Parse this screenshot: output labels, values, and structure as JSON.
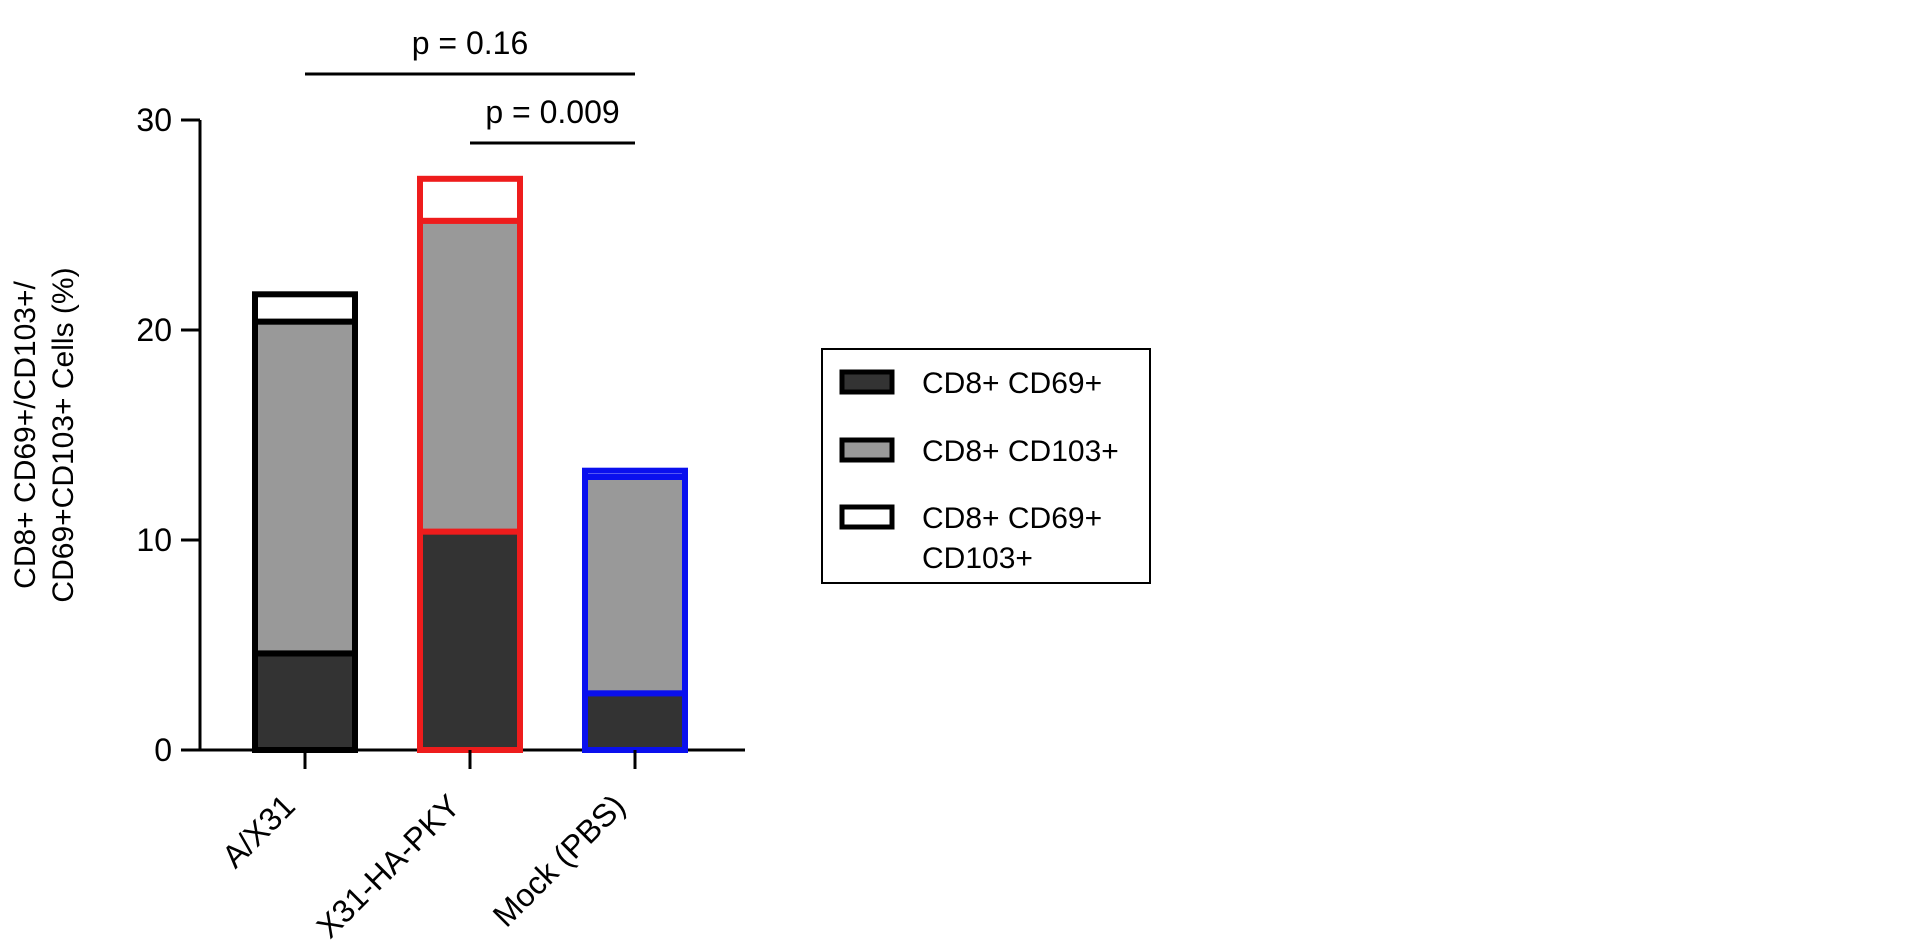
{
  "chart_data": {
    "type": "bar",
    "stacked": true,
    "categories": [
      "A/X31",
      "X31-HA-PKY",
      "Mock (PBS)"
    ],
    "category_outline_colors": [
      "#000000",
      "#ee1c1c",
      "#0a10ee"
    ],
    "series": [
      {
        "name": "CD8+ CD69+",
        "values": [
          4.6,
          10.4,
          2.7
        ],
        "fill": "#333333"
      },
      {
        "name": "CD8+ CD103+",
        "values": [
          15.8,
          14.8,
          10.3
        ],
        "fill": "#999999"
      },
      {
        "name": "CD8+ CD69+ CD103+",
        "legend_lines": [
          "CD8+ CD69+",
          "CD103+"
        ],
        "values": [
          1.3,
          2.0,
          0.3
        ],
        "fill": "#ffffff"
      }
    ],
    "ylabel_lines": [
      "CD8+ CD69+/CD103+/",
      "CD69+CD103+ Cells (%)"
    ],
    "ylim": [
      0,
      30
    ],
    "yticks": [
      0,
      10,
      20,
      30
    ],
    "legend_position": "right",
    "annotations": [
      {
        "text": "p = 0.16",
        "from": "A/X31",
        "to": "Mock (PBS)",
        "level": 2
      },
      {
        "text": "p = 0.009",
        "from": "X31-HA-PKY",
        "to": "Mock (PBS)",
        "level": 1
      }
    ]
  }
}
